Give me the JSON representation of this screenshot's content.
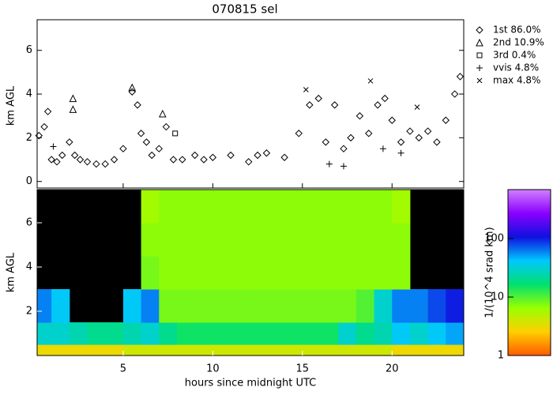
{
  "chart_data": [
    {
      "type": "scatter",
      "title": "070815 sel",
      "y_label": "km AGL",
      "xlim": [
        0.2,
        24
      ],
      "ylim": [
        -0.3,
        7.4
      ],
      "xticks": [
        5,
        10,
        15,
        20
      ],
      "yticks": [
        0,
        2,
        4,
        6
      ],
      "legend": "right-outside",
      "series": [
        {
          "name": "1st 86.0%",
          "marker": "diamond",
          "color": "#000000",
          "x": [
            0.3,
            0.6,
            0.8,
            1,
            1.3,
            1.6,
            2,
            2.3,
            2.6,
            3,
            3.5,
            4,
            4.5,
            5,
            5.5,
            5.8,
            6,
            6.3,
            6.6,
            7,
            7.4,
            7.8,
            8.3,
            9,
            9.5,
            10,
            11,
            12,
            12.5,
            13,
            14,
            14.8,
            15.4,
            15.9,
            16.3,
            16.8,
            17.3,
            17.7,
            18.2,
            18.7,
            19.2,
            19.6,
            20,
            20.5,
            21,
            21.5,
            22,
            22.5,
            23,
            23.5,
            23.8
          ],
          "values": [
            2.1,
            2.5,
            3.2,
            1,
            0.9,
            1.2,
            1.8,
            1.2,
            1,
            0.9,
            0.8,
            0.8,
            1,
            1.5,
            4.1,
            3.5,
            2.2,
            1.8,
            1.2,
            1.5,
            2.5,
            1,
            1,
            1.2,
            1,
            1.1,
            1.2,
            0.9,
            1.2,
            1.3,
            1.1,
            2.2,
            3.5,
            3.8,
            1.8,
            3.5,
            1.5,
            2,
            3,
            2.2,
            3.5,
            3.8,
            2.8,
            1.8,
            2.3,
            2,
            2.3,
            1.8,
            2.8,
            4,
            4.8
          ]
        },
        {
          "name": "2nd 10.9%",
          "marker": "triangle",
          "color": "#000000",
          "x": [
            2.2,
            2.2,
            5.5,
            7.2
          ],
          "values": [
            3.3,
            3.8,
            4.3,
            3.1
          ]
        },
        {
          "name": "3rd  0.4%",
          "marker": "square",
          "color": "#000000",
          "x": [
            7.9
          ],
          "values": [
            2.2
          ]
        },
        {
          "name": "vvis  4.8%",
          "marker": "plus",
          "color": "#000000",
          "x": [
            1.1,
            16.5,
            17.3,
            19.5,
            20.5
          ],
          "values": [
            1.6,
            0.8,
            0.7,
            1.5,
            1.3
          ]
        },
        {
          "name": "max  4.8%",
          "marker": "cross",
          "color": "#000000",
          "x": [
            15.2,
            18.8,
            21.4
          ],
          "values": [
            4.2,
            4.6,
            3.4
          ]
        }
      ]
    },
    {
      "type": "heatmap",
      "x_label": "hours since midnight UTC",
      "y_label": "km AGL",
      "colorbar_label": "1/(10^4 srad km)",
      "xlim": [
        0.2,
        24
      ],
      "ylim": [
        0,
        7.5
      ],
      "xticks": [
        5,
        10,
        15,
        20
      ],
      "yticks": [
        2,
        4,
        6
      ],
      "clim": [
        1,
        690
      ],
      "cticks": [
        1,
        10,
        100
      ],
      "log_scale": true,
      "colors": [
        "#ff5a00",
        "#ffd000",
        "#9aff00",
        "#00e070",
        "#00c8ff",
        "#1010e0",
        "#8a00ff",
        "#d080ff"
      ],
      "x_edges": [
        0,
        1,
        2,
        3,
        4,
        5,
        6,
        7,
        8,
        9,
        10,
        11,
        12,
        13,
        14,
        15,
        16,
        17,
        18,
        19,
        20,
        21,
        22,
        23,
        24
      ],
      "y_edges": [
        0,
        0.5,
        1.5,
        3,
        4.5,
        6,
        7.5
      ],
      "z": [
        [
          3,
          3,
          3,
          3,
          3,
          4,
          4,
          4,
          4,
          4,
          4,
          4,
          4,
          4,
          4,
          4,
          4,
          4,
          4,
          4,
          3,
          3,
          3,
          3
        ],
        [
          30,
          30,
          25,
          20,
          20,
          25,
          30,
          20,
          15,
          15,
          15,
          15,
          15,
          15,
          15,
          15,
          15,
          30,
          20,
          25,
          40,
          30,
          40,
          50
        ],
        [
          60,
          40,
          null,
          null,
          null,
          40,
          60,
          8,
          8,
          8,
          8,
          8,
          8,
          8,
          8,
          8,
          8,
          8,
          10,
          30,
          60,
          60,
          80,
          100
        ],
        [
          null,
          null,
          null,
          null,
          null,
          null,
          8,
          7,
          7,
          7,
          7,
          7,
          7,
          7,
          7,
          7,
          7,
          7,
          7,
          7,
          7,
          null,
          null,
          null
        ],
        [
          null,
          null,
          null,
          null,
          null,
          null,
          7,
          7,
          7,
          7,
          7,
          7,
          7,
          7,
          7,
          7,
          7,
          7,
          7,
          7,
          7,
          null,
          null,
          null
        ],
        [
          null,
          null,
          null,
          null,
          null,
          null,
          6,
          7,
          7,
          7,
          7,
          7,
          7,
          7,
          7,
          7,
          7,
          7,
          7,
          7,
          6,
          null,
          null,
          null
        ]
      ]
    }
  ]
}
